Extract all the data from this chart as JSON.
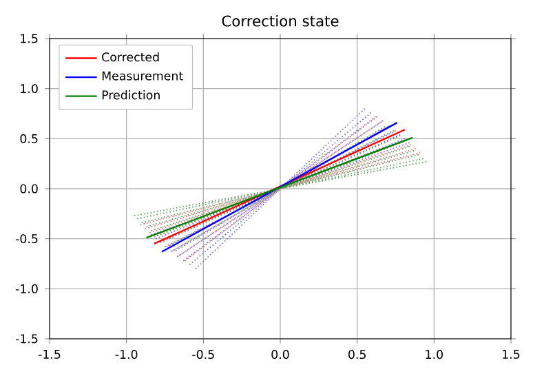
{
  "chart_data": {
    "type": "line",
    "title": "Correction state",
    "xlim": [
      -1.5,
      1.5
    ],
    "ylim": [
      -1.5,
      1.5
    ],
    "xticks": [
      {
        "value": -1.5,
        "label": "-1.5"
      },
      {
        "value": -1.0,
        "label": "-1.0"
      },
      {
        "value": -0.5,
        "label": "-0.5"
      },
      {
        "value": 0.0,
        "label": "0.0"
      },
      {
        "value": 0.5,
        "label": "0.5"
      },
      {
        "value": 1.0,
        "label": "1.0"
      },
      {
        "value": 1.5,
        "label": "1.5"
      }
    ],
    "yticks": [
      {
        "value": -1.5,
        "label": "-1.5"
      },
      {
        "value": -1.0,
        "label": "-1.0"
      },
      {
        "value": -0.5,
        "label": "-0.5"
      },
      {
        "value": 0.0,
        "label": "0.0"
      },
      {
        "value": 0.5,
        "label": "0.5"
      },
      {
        "value": 1.0,
        "label": "1.0"
      },
      {
        "value": 1.5,
        "label": "1.5"
      }
    ],
    "grid": true,
    "legend": "top left",
    "line_style": "dotted",
    "series": [
      {
        "color": "#7070e0",
        "x": [
          -0.55,
          0.55
        ],
        "values": [
          -0.8,
          0.8
        ]
      },
      {
        "color": "#7070e0",
        "x": [
          -0.59,
          0.59
        ],
        "values": [
          -0.76,
          0.76
        ]
      },
      {
        "color": "#7070e0",
        "x": [
          -0.63,
          0.63
        ],
        "values": [
          -0.72,
          0.72
        ]
      },
      {
        "color": "#7070e0",
        "x": [
          -0.67,
          0.67
        ],
        "values": [
          -0.68,
          0.68
        ]
      },
      {
        "color": "#7070e0",
        "x": [
          -0.71,
          0.71
        ],
        "values": [
          -0.63,
          0.63
        ]
      },
      {
        "color": "#7070e0",
        "x": [
          -0.75,
          0.75
        ],
        "values": [
          -0.58,
          0.58
        ]
      },
      {
        "color": "#7070e0",
        "x": [
          -0.78,
          0.78
        ],
        "values": [
          -0.54,
          0.54
        ]
      },
      {
        "color": "#7070e0",
        "x": [
          -0.81,
          0.81
        ],
        "values": [
          -0.5,
          0.5
        ]
      },
      {
        "color": "#7070e0",
        "x": [
          -0.84,
          0.84
        ],
        "values": [
          -0.46,
          0.46
        ]
      },
      {
        "color": "#e07070",
        "x": [
          -0.62,
          0.62
        ],
        "values": [
          -0.72,
          0.72
        ]
      },
      {
        "color": "#e07070",
        "x": [
          -0.66,
          0.66
        ],
        "values": [
          -0.67,
          0.67
        ]
      },
      {
        "color": "#e07070",
        "x": [
          -0.7,
          0.7
        ],
        "values": [
          -0.62,
          0.62
        ]
      },
      {
        "color": "#e07070",
        "x": [
          -0.74,
          0.74
        ],
        "values": [
          -0.58,
          0.58
        ]
      },
      {
        "color": "#e07070",
        "x": [
          -0.78,
          0.78
        ],
        "values": [
          -0.53,
          0.53
        ]
      },
      {
        "color": "#e07070",
        "x": [
          -0.82,
          0.82
        ],
        "values": [
          -0.48,
          0.48
        ]
      },
      {
        "color": "#e07070",
        "x": [
          -0.85,
          0.85
        ],
        "values": [
          -0.44,
          0.44
        ]
      },
      {
        "color": "#e07070",
        "x": [
          -0.88,
          0.88
        ],
        "values": [
          -0.4,
          0.4
        ]
      },
      {
        "color": "#e07070",
        "x": [
          -0.91,
          0.91
        ],
        "values": [
          -0.36,
          0.36
        ]
      },
      {
        "color": "#60a060",
        "x": [
          -0.68,
          0.68
        ],
        "values": [
          -0.62,
          0.62
        ]
      },
      {
        "color": "#60a060",
        "x": [
          -0.72,
          0.72
        ],
        "values": [
          -0.57,
          0.57
        ]
      },
      {
        "color": "#60a060",
        "x": [
          -0.76,
          0.76
        ],
        "values": [
          -0.52,
          0.52
        ]
      },
      {
        "color": "#60a060",
        "x": [
          -0.8,
          0.8
        ],
        "values": [
          -0.47,
          0.47
        ]
      },
      {
        "color": "#60a060",
        "x": [
          -0.84,
          0.84
        ],
        "values": [
          -0.42,
          0.42
        ]
      },
      {
        "color": "#60a060",
        "x": [
          -0.87,
          0.87
        ],
        "values": [
          -0.38,
          0.38
        ]
      },
      {
        "color": "#60a060",
        "x": [
          -0.9,
          0.9
        ],
        "values": [
          -0.34,
          0.34
        ]
      },
      {
        "color": "#60a060",
        "x": [
          -0.93,
          0.93
        ],
        "values": [
          -0.3,
          0.3
        ]
      },
      {
        "color": "#60a060",
        "x": [
          -0.95,
          0.95
        ],
        "values": [
          -0.27,
          0.27
        ]
      },
      {
        "name": "Corrected",
        "color": "#ff0000",
        "line_style": "solid",
        "x": [
          -0.82,
          0.81
        ],
        "values": [
          -0.55,
          0.59
        ]
      },
      {
        "name": "Measurement",
        "color": "#0000ff",
        "line_style": "solid",
        "x": [
          -0.77,
          0.76
        ],
        "values": [
          -0.63,
          0.66
        ]
      },
      {
        "name": "Prediction",
        "color": "#008000",
        "line_style": "solid",
        "x": [
          -0.87,
          0.86
        ],
        "values": [
          -0.49,
          0.51
        ]
      }
    ]
  }
}
